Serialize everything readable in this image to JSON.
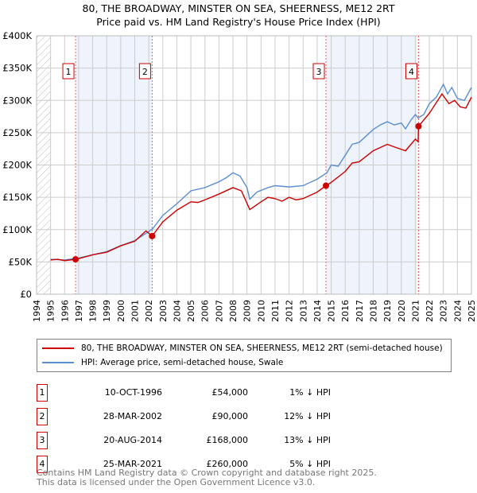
{
  "chart_data": {
    "type": "line",
    "title": "80, THE BROADWAY, MINSTER ON SEA, SHEERNESS, ME12 2RT",
    "subtitle": "Price paid vs. HM Land Registry's House Price Index (HPI)",
    "xlim": [
      1994,
      2025
    ],
    "ylim": [
      0,
      400000
    ],
    "x_ticks": [
      "1994",
      "1995",
      "1996",
      "1997",
      "1998",
      "1999",
      "2000",
      "2001",
      "2002",
      "2003",
      "2004",
      "2005",
      "2006",
      "2007",
      "2008",
      "2009",
      "2010",
      "2011",
      "2012",
      "2013",
      "2014",
      "2015",
      "2016",
      "2017",
      "2018",
      "2019",
      "2020",
      "2021",
      "2022",
      "2023",
      "2024",
      "2025"
    ],
    "y_ticks": [
      {
        "v": 0,
        "label": "£0"
      },
      {
        "v": 50000,
        "label": "£50K"
      },
      {
        "v": 100000,
        "label": "£100K"
      },
      {
        "v": 150000,
        "label": "£150K"
      },
      {
        "v": 200000,
        "label": "£200K"
      },
      {
        "v": 250000,
        "label": "£250K"
      },
      {
        "v": 300000,
        "label": "£300K"
      },
      {
        "v": 350000,
        "label": "£350K"
      },
      {
        "v": 400000,
        "label": "£400K"
      }
    ],
    "grid": true,
    "colors": {
      "property": "#cc0000",
      "hpi": "#5b8fd0",
      "shade": "#eef3fc"
    },
    "series": [
      {
        "name": "80, THE BROADWAY, MINSTER ON SEA, SHEERNESS, ME12 2RT (semi-detached house)",
        "key": "property",
        "x": [
          1995,
          1995.5,
          1996,
          1996.78,
          1997,
          1998,
          1999,
          2000,
          2001,
          2001.8,
          2002.24,
          2003,
          2004,
          2005,
          2005.5,
          2006,
          2007,
          2008,
          2008.6,
          2009.2,
          2010,
          2010.5,
          2011,
          2011.5,
          2012,
          2012.5,
          2013,
          2014,
          2014.63,
          2015,
          2016,
          2016.5,
          2017,
          2018,
          2019,
          2019.5,
          2020.3,
          2021,
          2021.2,
          2021.23,
          2022,
          2022.9,
          2023.4,
          2023.8,
          2024.2,
          2024.6,
          2025
        ],
        "y": [
          53000,
          54000,
          52000,
          54000,
          55000,
          61000,
          65000,
          75000,
          82000,
          98000,
          90000,
          112000,
          130000,
          143000,
          142000,
          146000,
          155000,
          165000,
          160000,
          131000,
          143000,
          150000,
          148000,
          144000,
          150000,
          146000,
          148000,
          158000,
          168000,
          173000,
          190000,
          203000,
          205000,
          222000,
          232000,
          228000,
          222000,
          240000,
          236000,
          260000,
          280000,
          310000,
          295000,
          300000,
          290000,
          288000,
          305000
        ]
      },
      {
        "name": "HPI: Average price, semi-detached house, Swale",
        "key": "hpi",
        "x": [
          1995,
          1996,
          1997,
          1998,
          1999,
          2000,
          2001,
          2002,
          2002.3,
          2003,
          2004,
          2004.5,
          2005,
          2006,
          2007,
          2007.5,
          2008,
          2008.5,
          2009,
          2009.2,
          2009.7,
          2010.5,
          2011,
          2012,
          2013,
          2014,
          2014.7,
          2015,
          2015.5,
          2016,
          2016.5,
          2017,
          2017.5,
          2018,
          2018.5,
          2019,
          2019.5,
          2020,
          2020.3,
          2020.7,
          2021,
          2021.2,
          2021.6,
          2022,
          2022.5,
          2023,
          2023.3,
          2023.6,
          2024,
          2024.5,
          2025
        ],
        "y": [
          54000,
          53000,
          56000,
          61000,
          66000,
          75000,
          83000,
          97000,
          102000,
          122000,
          140000,
          150000,
          160000,
          165000,
          174000,
          180000,
          188000,
          183000,
          165000,
          147000,
          158000,
          165000,
          168000,
          166000,
          168000,
          178000,
          188000,
          200000,
          198000,
          215000,
          232000,
          235000,
          245000,
          255000,
          262000,
          267000,
          262000,
          265000,
          256000,
          270000,
          278000,
          273000,
          278000,
          295000,
          305000,
          325000,
          310000,
          320000,
          303000,
          300000,
          320000
        ]
      }
    ],
    "sales": [
      {
        "n": "1",
        "x": 1996.78,
        "y": 54000,
        "date": "10-OCT-1996",
        "price": "£54,000",
        "diff": "1% ↓ HPI"
      },
      {
        "n": "2",
        "x": 2002.24,
        "y": 90000,
        "date": "28-MAR-2002",
        "price": "£90,000",
        "diff": "12% ↓ HPI"
      },
      {
        "n": "3",
        "x": 2014.63,
        "y": 168000,
        "date": "20-AUG-2014",
        "price": "£168,000",
        "diff": "13% ↓ HPI"
      },
      {
        "n": "4",
        "x": 2021.23,
        "y": 260000,
        "date": "25-MAR-2021",
        "price": "£260,000",
        "diff": "5% ↓ HPI"
      }
    ],
    "legend": {
      "property": "80, THE BROADWAY, MINSTER ON SEA, SHEERNESS, ME12 2RT (semi-detached house)",
      "hpi": "HPI: Average price, semi-detached house, Swale",
      "placement": "below"
    }
  },
  "footer": {
    "line1": "Contains HM Land Registry data © Crown copyright and database right 2025.",
    "line2": "This data is licensed under the Open Government Licence v3.0."
  }
}
